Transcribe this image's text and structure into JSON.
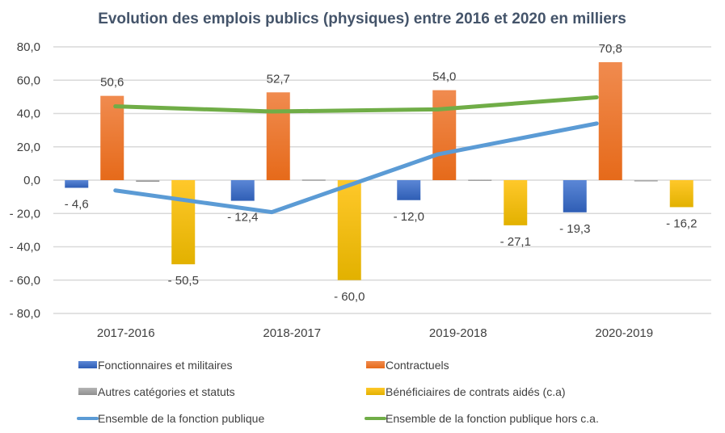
{
  "chart_data": {
    "type": "bar",
    "title": "Evolution des emplois publics (physiques) entre 2016 et 2020 en milliers",
    "xlabel": "",
    "ylabel": "",
    "ylim": [
      -80,
      80
    ],
    "yticks": [
      80,
      60,
      40,
      20,
      0,
      -20,
      -40,
      -60,
      -80
    ],
    "ytick_labels": [
      "80,0",
      "60,0",
      "40,0",
      "20,0",
      "0,0",
      "- 20,0",
      "- 40,0",
      "- 60,0",
      "- 80,0"
    ],
    "grid": true,
    "legend_position": "bottom",
    "categories": [
      "2017-2016",
      "2018-2017",
      "2019-2018",
      "2020-2019"
    ],
    "series": [
      {
        "name": "Fonctionnaires et militaires",
        "kind": "bar",
        "color": "#4472c4",
        "values": [
          -4.6,
          -12.4,
          -12.0,
          -19.3
        ],
        "labels": [
          "- 4,6",
          "- 12,4",
          "- 12,0",
          "- 19,3"
        ]
      },
      {
        "name": "Contractuels",
        "kind": "bar",
        "color": "#ed7d31",
        "values": [
          50.6,
          52.7,
          54.0,
          70.8
        ],
        "labels": [
          "50,6",
          "52,7",
          "54,0",
          "70,8"
        ]
      },
      {
        "name": "Autres catégories et statuts",
        "kind": "bar",
        "color": "#a5a5a5",
        "values": [
          -1.0,
          0.4,
          0.3,
          -0.5
        ],
        "labels": [
          "",
          "",
          "",
          ""
        ]
      },
      {
        "name": "Bénéficiaires de contrats aidés (c.a)",
        "kind": "bar",
        "color": "#ffc000",
        "values": [
          -50.5,
          -60.0,
          -27.1,
          -16.2
        ],
        "labels": [
          "- 50,5",
          "- 60,0",
          "- 27,1",
          "- 16,2"
        ]
      },
      {
        "name": "Ensemble de la fonction publique",
        "kind": "line",
        "color": "#5b9bd5",
        "values": [
          -6.2,
          -19.2,
          15.5,
          34.0
        ]
      },
      {
        "name": "Ensemble de la fonction publique hors c.a.",
        "kind": "line",
        "color": "#70ad47",
        "values": [
          44.3,
          41.2,
          42.5,
          49.7
        ]
      }
    ]
  }
}
